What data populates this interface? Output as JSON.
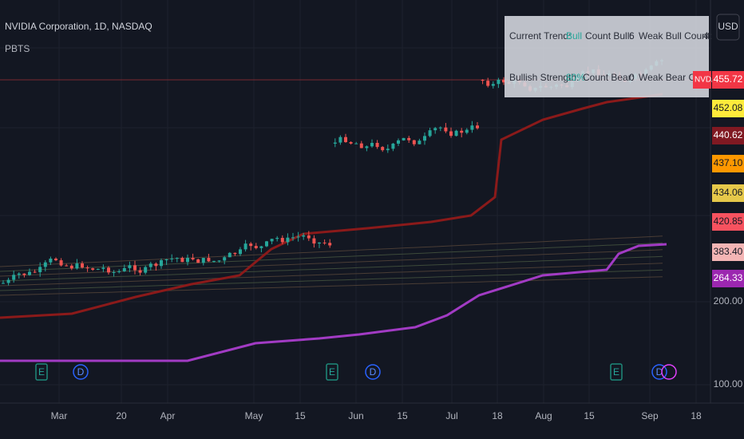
{
  "header": {
    "symbol": "NVIDIA Corporation, 1D, NASDAQ",
    "indicator": "PBTS",
    "currency": "USD"
  },
  "table": {
    "rows": [
      [
        "Current Trend:",
        "Bull",
        "Count Bull:",
        "6",
        "Weak Bull Count:",
        "4"
      ],
      [
        "Bullish Strength:",
        "80%",
        "Count Bear:",
        "0",
        "Weak Bear Count:"
      ]
    ]
  },
  "price_axis": {
    "symbol_tag": "NVDA",
    "labels": [
      {
        "text": "455.72",
        "color": "#f23645",
        "ink": "#ffffff"
      },
      {
        "text": "452.08",
        "color": "#ffeb3b",
        "ink": "#131722"
      },
      {
        "text": "440.62",
        "color": "#801922",
        "ink": "#ffffff"
      },
      {
        "text": "437.10",
        "color": "#ff9800",
        "ink": "#131722"
      },
      {
        "text": "434.06",
        "color": "#e6c84a",
        "ink": "#131722"
      },
      {
        "text": "420.85",
        "color": "#f7525f",
        "ink": "#131722"
      },
      {
        "text": "383.40",
        "color": "#f4b5b5",
        "ink": "#131722"
      },
      {
        "text": "264.33",
        "color": "#9c27b0",
        "ink": "#ffffff"
      }
    ],
    "grid_labels": [
      "200.00",
      "100.00"
    ]
  },
  "time_axis": [
    "Mar",
    "20",
    "Apr",
    "May",
    "15",
    "Jun",
    "15",
    "Jul",
    "18",
    "Aug",
    "15",
    "Sep",
    "18"
  ],
  "events": [
    "E",
    "D",
    "E",
    "D",
    "E",
    "D"
  ]
}
